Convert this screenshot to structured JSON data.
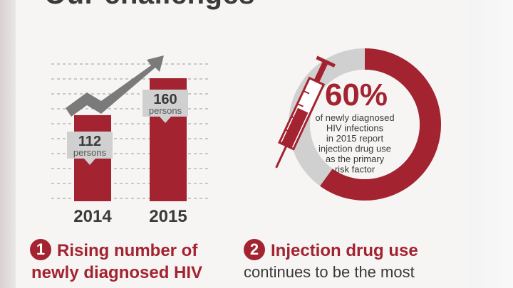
{
  "title": "Our challenges",
  "chart_data": {
    "type": "bar",
    "categories": [
      "2014",
      "2015"
    ],
    "values": [
      112,
      160
    ],
    "unit": "persons",
    "ylim": [
      0,
      185
    ],
    "grid": true
  },
  "donut": {
    "percent_value": 60,
    "percent_label": "60%",
    "description_lines": [
      "of newly diagnosed",
      "HIV infections",
      "in 2015 report",
      "injection drug use",
      "as the primary",
      "risk factor"
    ]
  },
  "challenges": [
    {
      "number": "1",
      "title_line1": "Rising number of",
      "title_line2": "newly diagnosed HIV"
    },
    {
      "number": "2",
      "title_line1": "Injection drug use",
      "subtitle": "continues to be the most"
    }
  ],
  "colors": {
    "accent": "#a32330",
    "text": "#3a3a3a",
    "gray": "#7a7a7a",
    "light_gray": "#d0d0d0"
  }
}
